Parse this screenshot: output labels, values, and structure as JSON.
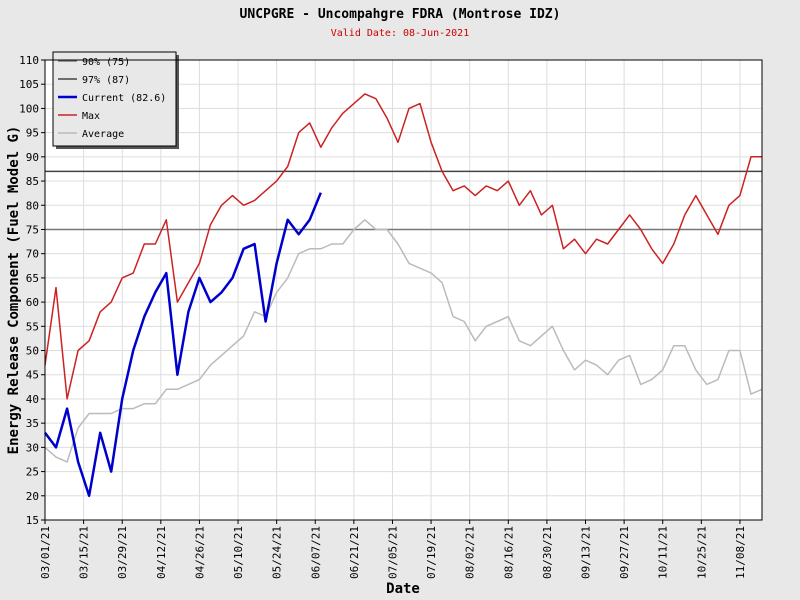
{
  "chart_data": {
    "type": "line",
    "title": "UNCPGRE - Uncompahgre FDRA (Montrose IDZ)",
    "subtitle": "Valid Date: 08-Jun-2021",
    "x_label": "Date",
    "y_label": "Energy Release Component (Fuel Model G)",
    "x": [
      "03/01/21",
      "03/05/21",
      "03/09/21",
      "03/13/21",
      "03/17/21",
      "03/21/21",
      "03/25/21",
      "03/29/21",
      "04/02/21",
      "04/06/21",
      "04/10/21",
      "04/14/21",
      "04/18/21",
      "04/22/21",
      "04/26/21",
      "04/30/21",
      "05/04/21",
      "05/08/21",
      "05/12/21",
      "05/16/21",
      "05/20/21",
      "05/24/21",
      "05/28/21",
      "06/01/21",
      "06/05/21",
      "06/09/21",
      "06/13/21",
      "06/17/21",
      "06/21/21",
      "06/25/21",
      "06/29/21",
      "07/03/21",
      "07/07/21",
      "07/11/21",
      "07/15/21",
      "07/19/21",
      "07/23/21",
      "07/27/21",
      "07/31/21",
      "08/04/21",
      "08/08/21",
      "08/12/21",
      "08/16/21",
      "08/20/21",
      "08/24/21",
      "08/28/21",
      "09/01/21",
      "09/05/21",
      "09/09/21",
      "09/13/21",
      "09/17/21",
      "09/21/21",
      "09/25/21",
      "09/29/21",
      "10/03/21",
      "10/07/21",
      "10/11/21",
      "10/15/21",
      "10/19/21",
      "10/23/21",
      "10/27/21",
      "10/31/21",
      "11/04/21",
      "11/08/21",
      "11/12/21",
      "11/16/21"
    ],
    "reference_lines": [
      {
        "name": "90% (75)",
        "color": "#777777",
        "value": 75
      },
      {
        "name": "97% (87)",
        "color": "#444444",
        "value": 87
      }
    ],
    "series": [
      {
        "name": "Current (82.6)",
        "color": "#0000cc",
        "width": 2.5,
        "values": [
          33,
          30,
          38,
          27,
          20,
          33,
          25,
          40,
          50,
          57,
          62,
          66,
          45,
          58,
          65,
          60,
          62,
          65,
          71,
          72,
          56,
          68,
          77,
          74,
          77,
          82.6,
          null,
          null,
          null,
          null,
          null,
          null,
          null,
          null,
          null,
          null,
          null,
          null,
          null,
          null,
          null,
          null,
          null,
          null,
          null,
          null,
          null,
          null,
          null,
          null,
          null,
          null,
          null,
          null,
          null,
          null,
          null,
          null,
          null,
          null,
          null,
          null,
          null,
          null,
          null,
          null
        ]
      },
      {
        "name": "Max",
        "color": "#cc2222",
        "width": 1.5,
        "values": [
          47,
          63,
          40,
          50,
          52,
          58,
          60,
          65,
          66,
          72,
          72,
          77,
          60,
          64,
          68,
          76,
          80,
          82,
          80,
          81,
          83,
          85,
          88,
          95,
          97,
          92,
          96,
          99,
          101,
          103,
          102,
          98,
          93,
          100,
          101,
          93,
          87,
          83,
          84,
          82,
          84,
          83,
          85,
          80,
          83,
          78,
          80,
          71,
          73,
          70,
          73,
          72,
          75,
          78,
          75,
          71,
          68,
          72,
          78,
          82,
          78,
          74,
          80,
          82,
          90,
          90
        ]
      },
      {
        "name": "Average",
        "color": "#bbbbbb",
        "width": 1.5,
        "values": [
          30,
          28,
          27,
          34,
          37,
          37,
          37,
          38,
          38,
          39,
          39,
          42,
          42,
          43,
          44,
          47,
          49,
          51,
          53,
          58,
          57,
          62,
          65,
          70,
          71,
          71,
          72,
          72,
          75,
          77,
          75,
          75,
          72,
          68,
          67,
          66,
          64,
          57,
          56,
          52,
          55,
          56,
          57,
          52,
          51,
          53,
          55,
          50,
          46,
          48,
          47,
          45,
          48,
          49,
          43,
          44,
          46,
          51,
          51,
          46,
          43,
          44,
          50,
          50,
          41,
          42
        ]
      }
    ],
    "xlim": [
      "03/01/21",
      "11/16/21"
    ],
    "xticks": [
      "03/01/21",
      "03/15/21",
      "03/29/21",
      "04/12/21",
      "04/26/21",
      "05/10/21",
      "05/24/21",
      "06/07/21",
      "06/21/21",
      "07/05/21",
      "07/19/21",
      "08/02/21",
      "08/16/21",
      "08/30/21",
      "09/13/21",
      "09/27/21",
      "10/11/21",
      "10/25/21",
      "11/08/21"
    ],
    "ylim": [
      15,
      110
    ],
    "yticks": [
      15,
      20,
      25,
      30,
      35,
      40,
      45,
      50,
      55,
      60,
      65,
      70,
      75,
      80,
      85,
      90,
      95,
      100,
      105,
      110
    ],
    "grid": true,
    "legend": "top-left"
  }
}
